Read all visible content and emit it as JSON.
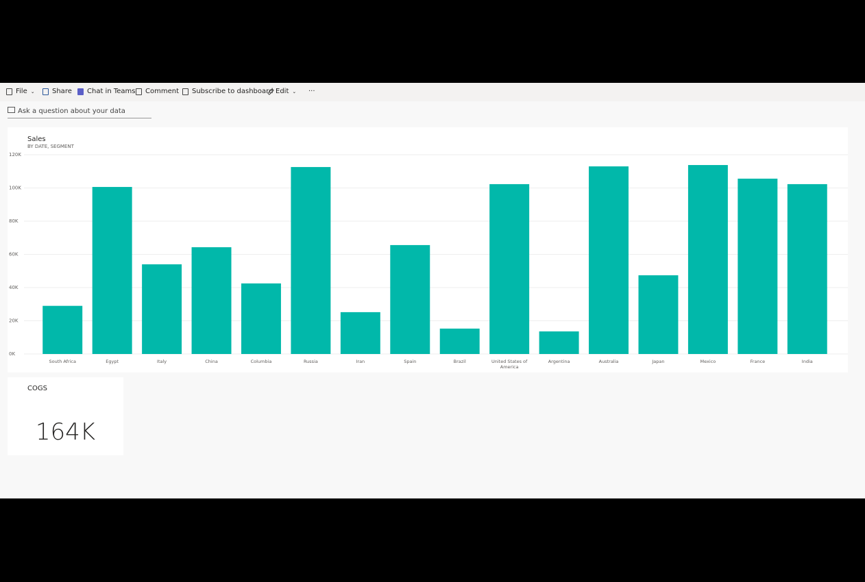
{
  "toolbar": {
    "items": [
      "File",
      "Share",
      "Chat in Teams",
      "Comment",
      "Subscribe to dashboard",
      "Edit"
    ]
  },
  "qna": {
    "placeholder": "Ask a question about your data"
  },
  "chart_data": {
    "type": "bar",
    "title": "Sales",
    "subtitle": "BY DATE, SEGMENT",
    "categories": [
      "South Africa",
      "Egypt",
      "Italy",
      "China",
      "Columbia",
      "Russia",
      "Iran",
      "Spain",
      "Brazil",
      "United States of America",
      "Argentina",
      "Australia",
      "Japan",
      "Mexico",
      "France",
      "India"
    ],
    "values": [
      29000,
      100600,
      54000,
      64300,
      42500,
      112600,
      25200,
      65600,
      15300,
      102300,
      13600,
      113000,
      47400,
      113800,
      105600,
      102300
    ],
    "color": "#01b8aa",
    "ylim": [
      0,
      120000
    ],
    "yticks": [
      {
        "value": 0,
        "label": "0K"
      },
      {
        "value": 20000,
        "label": "20K"
      },
      {
        "value": 40000,
        "label": "40K"
      },
      {
        "value": 60000,
        "label": "60K"
      },
      {
        "value": 80000,
        "label": "80K"
      },
      {
        "value": 100000,
        "label": "100K"
      },
      {
        "value": 120000,
        "label": "120K"
      }
    ],
    "grid": true
  },
  "card": {
    "title": "COGS",
    "value": "164K"
  }
}
